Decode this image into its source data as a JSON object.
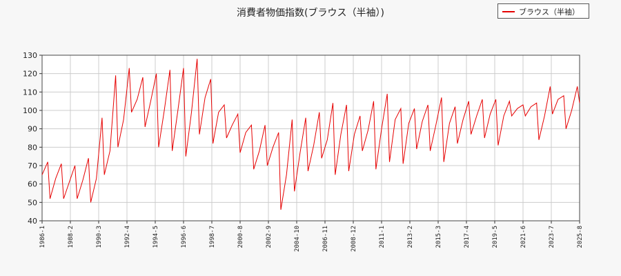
{
  "chart_data": {
    "type": "line",
    "title": "消費者物価指数(ブラウス（半袖）)",
    "xlabel": "",
    "ylabel": "",
    "ylim": [
      40,
      130
    ],
    "yticks": [
      40,
      50,
      60,
      70,
      80,
      90,
      100,
      110,
      120,
      130
    ],
    "xlim": [
      "1986-1",
      "2025-8"
    ],
    "xticks": [
      "1986-1",
      "1988-2",
      "1990-3",
      "1992-4",
      "1994-5",
      "1996-6",
      "1998-7",
      "2000-8",
      "2002-9",
      "2004-10",
      "2006-11",
      "2008-12",
      "2011-1",
      "2013-2",
      "2015-3",
      "2017-4",
      "2019-5",
      "2021-6",
      "2023-7",
      "2025-8"
    ],
    "grid": true,
    "legend_position": "top-right",
    "series": [
      {
        "name": "ブラウス（半袖）",
        "color": "#e60000",
        "x": [
          "1986-1",
          "1986-6",
          "1986-8",
          "1987-1",
          "1987-6",
          "1987-8",
          "1988-1",
          "1988-6",
          "1988-8",
          "1989-1",
          "1989-6",
          "1989-8",
          "1990-1",
          "1990-6",
          "1990-8",
          "1991-1",
          "1991-6",
          "1991-8",
          "1992-1",
          "1992-6",
          "1992-8",
          "1993-1",
          "1993-6",
          "1993-8",
          "1994-1",
          "1994-6",
          "1994-8",
          "1995-1",
          "1995-6",
          "1995-8",
          "1996-1",
          "1996-6",
          "1996-8",
          "1997-1",
          "1997-6",
          "1997-8",
          "1998-1",
          "1998-6",
          "1998-8",
          "1999-1",
          "1999-6",
          "1999-8",
          "2000-1",
          "2000-6",
          "2000-8",
          "2001-1",
          "2001-6",
          "2001-8",
          "2002-1",
          "2002-6",
          "2002-8",
          "2003-1",
          "2003-6",
          "2003-8",
          "2004-1",
          "2004-6",
          "2004-8",
          "2005-1",
          "2005-6",
          "2005-8",
          "2006-1",
          "2006-6",
          "2006-8",
          "2007-1",
          "2007-6",
          "2007-8",
          "2008-1",
          "2008-6",
          "2008-8",
          "2009-1",
          "2009-6",
          "2009-8",
          "2010-1",
          "2010-6",
          "2010-8",
          "2011-1",
          "2011-6",
          "2011-8",
          "2012-1",
          "2012-6",
          "2012-8",
          "2013-1",
          "2013-6",
          "2013-8",
          "2014-1",
          "2014-6",
          "2014-8",
          "2015-1",
          "2015-6",
          "2015-8",
          "2016-1",
          "2016-6",
          "2016-8",
          "2017-1",
          "2017-6",
          "2017-8",
          "2018-1",
          "2018-6",
          "2018-8",
          "2019-1",
          "2019-6",
          "2019-8",
          "2020-1",
          "2020-6",
          "2020-8",
          "2021-1",
          "2021-6",
          "2021-8",
          "2022-1",
          "2022-6",
          "2022-8",
          "2023-1",
          "2023-6",
          "2023-8",
          "2024-1",
          "2024-6",
          "2024-8",
          "2025-1",
          "2025-6",
          "2025-8"
        ],
        "values": [
          65,
          72,
          52,
          63,
          71,
          52,
          61,
          70,
          52,
          62,
          74,
          50,
          63,
          96,
          65,
          78,
          119,
          80,
          95,
          123,
          99,
          106,
          118,
          91,
          105,
          120,
          80,
          100,
          122,
          78,
          100,
          123,
          75,
          99,
          128,
          87,
          107,
          117,
          82,
          99,
          103,
          85,
          92,
          98,
          77,
          88,
          92,
          68,
          78,
          92,
          70,
          80,
          88,
          46,
          65,
          95,
          56,
          77,
          96,
          67,
          81,
          99,
          74,
          84,
          104,
          65,
          87,
          103,
          67,
          87,
          97,
          78,
          89,
          105,
          68,
          90,
          109,
          72,
          95,
          101,
          71,
          93,
          101,
          79,
          94,
          103,
          78,
          92,
          107,
          72,
          93,
          102,
          82,
          95,
          105,
          87,
          97,
          106,
          85,
          98,
          106,
          81,
          97,
          105,
          97,
          101,
          103,
          97,
          102,
          104,
          84,
          97,
          113,
          98,
          106,
          108,
          90,
          100,
          113,
          104
        ]
      }
    ]
  }
}
